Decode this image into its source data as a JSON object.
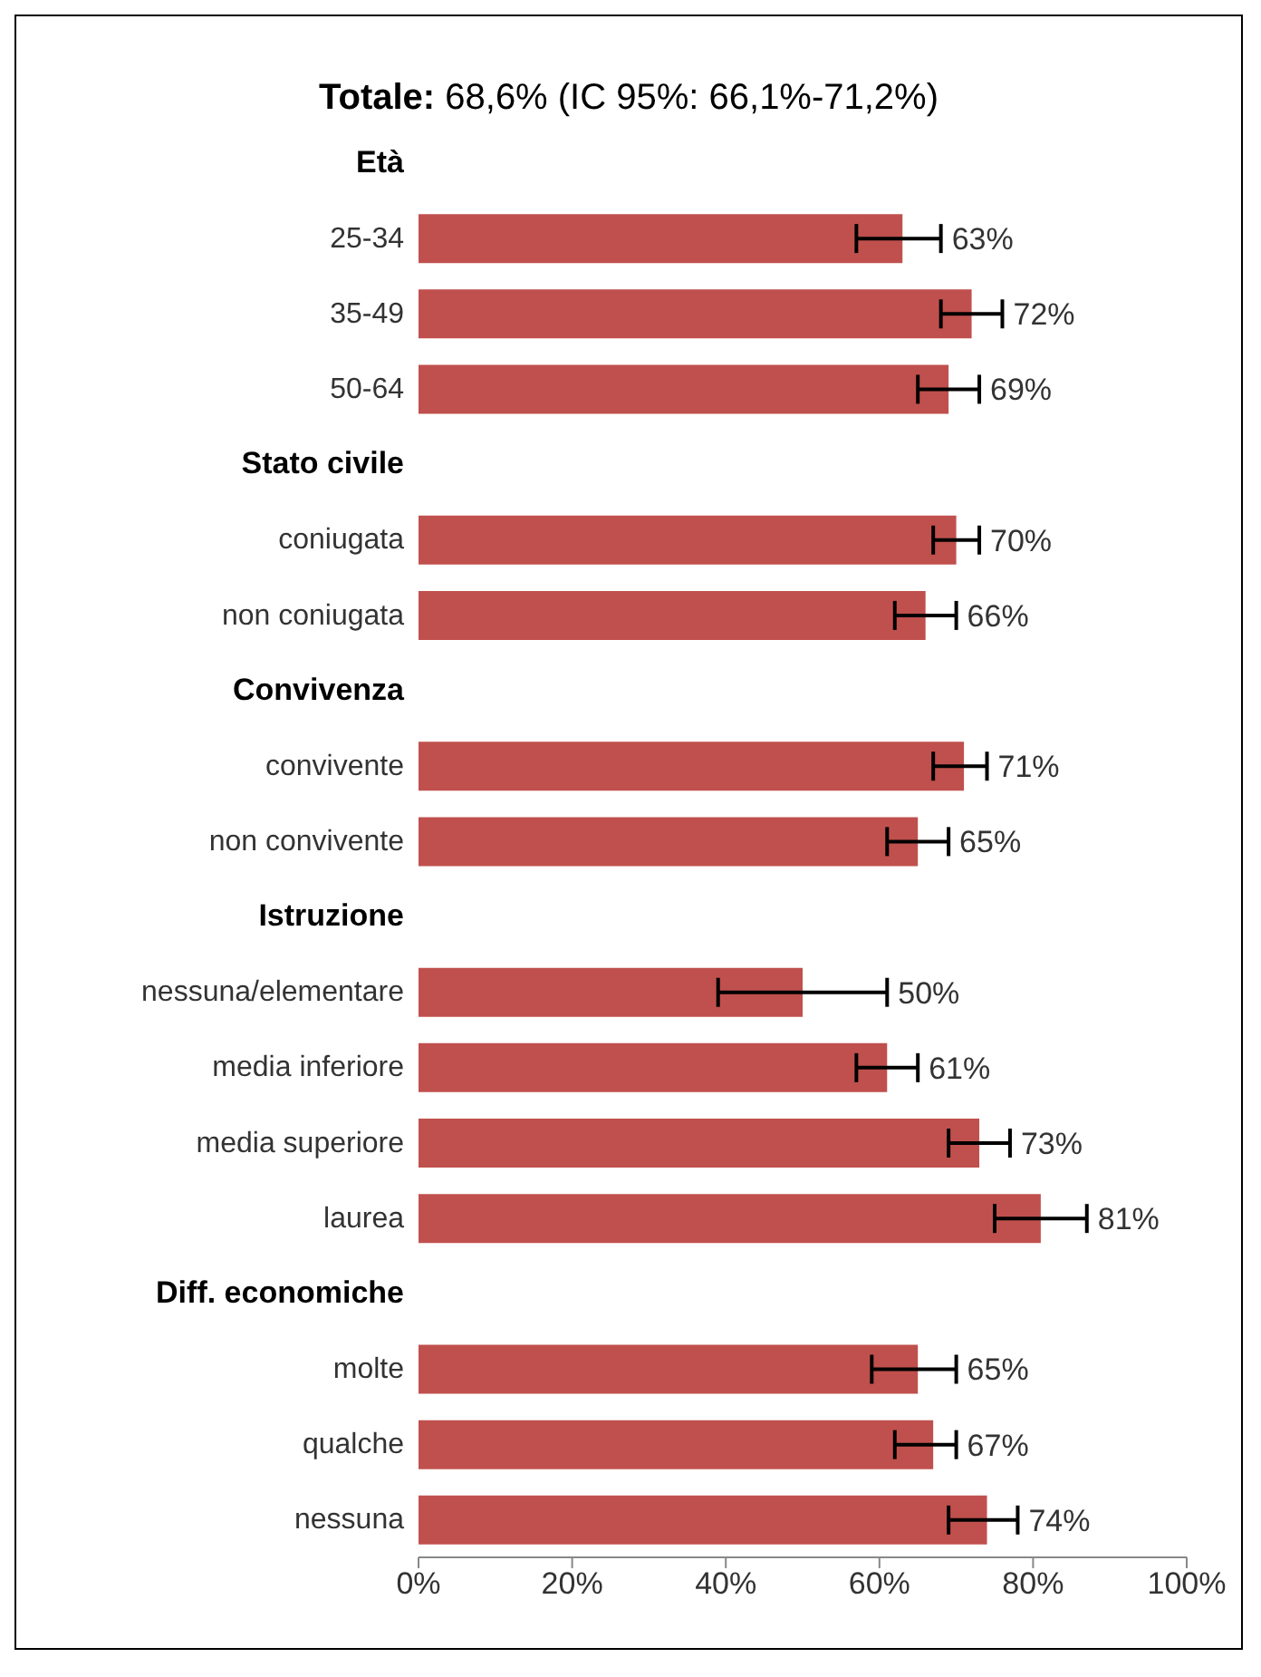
{
  "chart_data": {
    "type": "bar",
    "orientation": "horizontal",
    "title": "Totale: 68,6% (IC 95%: 66,1%-71,2%)",
    "categories": [
      "Età",
      "25-34",
      "35-49",
      "50-64",
      "Stato civile",
      "coniugata",
      "non coniugata",
      "Convivenza",
      "convivente",
      "non convivente",
      "Istruzione",
      "nessuna/elementare",
      "media inferiore",
      "media superiore",
      "laurea",
      "Diff. economiche",
      "molte",
      "qualche",
      "nessuna"
    ],
    "values": [
      null,
      63,
      72,
      69,
      null,
      70,
      66,
      null,
      71,
      65,
      null,
      50,
      61,
      73,
      81,
      null,
      65,
      67,
      74
    ],
    "value_labels": [
      null,
      "63%",
      "72%",
      "69%",
      null,
      "70%",
      "66%",
      null,
      "71%",
      "65%",
      null,
      "50%",
      "61%",
      "73%",
      "81%",
      null,
      "65%",
      "67%",
      "74%"
    ],
    "errors": [
      null,
      [
        57,
        68
      ],
      [
        68,
        76
      ],
      [
        65,
        73
      ],
      null,
      [
        67,
        73
      ],
      [
        62,
        70
      ],
      null,
      [
        67,
        74
      ],
      [
        61,
        69
      ],
      null,
      [
        39,
        61
      ],
      [
        57,
        65
      ],
      [
        69,
        77
      ],
      [
        75,
        87
      ],
      null,
      [
        59,
        70
      ],
      [
        62,
        70
      ],
      [
        69,
        78
      ]
    ],
    "color": "#c0504d",
    "xlim": [
      0,
      100
    ],
    "xticks": [
      {
        "value": 0,
        "label": "0%"
      },
      {
        "value": 20,
        "label": "20%"
      },
      {
        "value": 40,
        "label": "40%"
      },
      {
        "value": 60,
        "label": "60%"
      },
      {
        "value": 80,
        "label": "80%"
      },
      {
        "value": 100,
        "label": "100%"
      }
    ],
    "grid": false,
    "legend": false
  }
}
